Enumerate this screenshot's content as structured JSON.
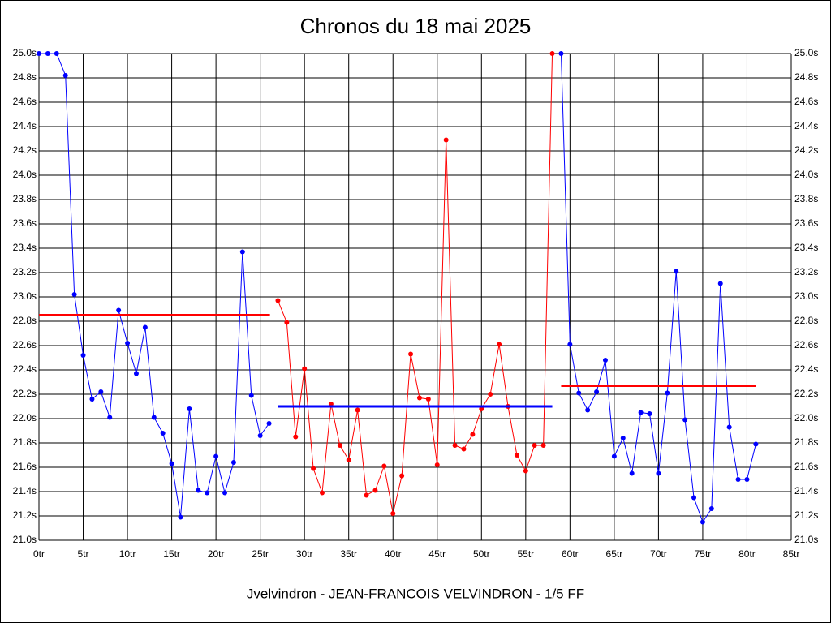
{
  "chart_data": {
    "type": "line",
    "title": "Chronos du 18 mai 2025",
    "footer": "Jvelvindron - JEAN-FRANCOIS VELVINDRON - 1/5 FF",
    "xlim": [
      0,
      85
    ],
    "xticks": [
      {
        "value": 0,
        "label": "0tr"
      },
      {
        "value": 5,
        "label": "5tr"
      },
      {
        "value": 10,
        "label": "10tr"
      },
      {
        "value": 15,
        "label": "15tr"
      },
      {
        "value": 20,
        "label": "20tr"
      },
      {
        "value": 25,
        "label": "25tr"
      },
      {
        "value": 30,
        "label": "30tr"
      },
      {
        "value": 35,
        "label": "35tr"
      },
      {
        "value": 40,
        "label": "40tr"
      },
      {
        "value": 45,
        "label": "45tr"
      },
      {
        "value": 50,
        "label": "50tr"
      },
      {
        "value": 55,
        "label": "55tr"
      },
      {
        "value": 60,
        "label": "60tr"
      },
      {
        "value": 65,
        "label": "65tr"
      },
      {
        "value": 70,
        "label": "70tr"
      },
      {
        "value": 75,
        "label": "75tr"
      },
      {
        "value": 80,
        "label": "80tr"
      },
      {
        "value": 85,
        "label": "85tr"
      }
    ],
    "ylim": [
      21.0,
      25.0
    ],
    "yticks": [
      {
        "value": 21.0,
        "label": "21.0s"
      },
      {
        "value": 21.2,
        "label": "21.2s"
      },
      {
        "value": 21.4,
        "label": "21.4s"
      },
      {
        "value": 21.6,
        "label": "21.6s"
      },
      {
        "value": 21.8,
        "label": "21.8s"
      },
      {
        "value": 22.0,
        "label": "22.0s"
      },
      {
        "value": 22.2,
        "label": "22.2s"
      },
      {
        "value": 22.4,
        "label": "22.4s"
      },
      {
        "value": 22.6,
        "label": "22.6s"
      },
      {
        "value": 22.8,
        "label": "22.8s"
      },
      {
        "value": 23.0,
        "label": "23.0s"
      },
      {
        "value": 23.2,
        "label": "23.2s"
      },
      {
        "value": 23.4,
        "label": "23.4s"
      },
      {
        "value": 23.6,
        "label": "23.6s"
      },
      {
        "value": 23.8,
        "label": "23.8s"
      },
      {
        "value": 24.0,
        "label": "24.0s"
      },
      {
        "value": 24.2,
        "label": "24.2s"
      },
      {
        "value": 24.4,
        "label": "24.4s"
      },
      {
        "value": 24.6,
        "label": "24.6s"
      },
      {
        "value": 24.8,
        "label": "24.8s"
      },
      {
        "value": 25.0,
        "label": "25.0s"
      }
    ],
    "grid": true,
    "series": [
      {
        "color": "#0000ff",
        "x": [
          0,
          1,
          2,
          3,
          4,
          5,
          6,
          7,
          8,
          9,
          10,
          11,
          12,
          13,
          14,
          15,
          16,
          17,
          18,
          19,
          20,
          21,
          22,
          23,
          24,
          25,
          26
        ],
        "values": [
          25.0,
          25.0,
          25.0,
          24.82,
          23.02,
          22.52,
          22.16,
          22.22,
          22.01,
          22.89,
          22.62,
          22.37,
          22.75,
          22.01,
          21.88,
          21.63,
          21.19,
          22.08,
          21.41,
          21.39,
          21.69,
          21.39,
          21.64,
          23.37,
          22.19,
          21.86,
          21.96
        ]
      },
      {
        "color": "#ff0000",
        "x": [
          27,
          28,
          29,
          30,
          31,
          32,
          33,
          34,
          35,
          36,
          37,
          38,
          39,
          40,
          41,
          42,
          43,
          44,
          45,
          46,
          47,
          48,
          49,
          50,
          51,
          52,
          53,
          54,
          55,
          56,
          57,
          58
        ],
        "values": [
          22.97,
          22.79,
          21.85,
          22.41,
          21.59,
          21.39,
          22.12,
          21.78,
          21.66,
          22.07,
          21.37,
          21.41,
          21.61,
          21.22,
          21.53,
          22.53,
          22.17,
          22.16,
          21.62,
          24.29,
          21.78,
          21.75,
          21.87,
          22.08,
          22.2,
          22.61,
          22.1,
          21.7,
          21.57,
          21.78,
          21.78,
          25.0
        ]
      },
      {
        "color": "#0000ff",
        "x": [
          59,
          60,
          61,
          62,
          63,
          64,
          65,
          66,
          67,
          68,
          69,
          70,
          71,
          72,
          73,
          74,
          75,
          76,
          77,
          78,
          79,
          80,
          81
        ],
        "values": [
          25.0,
          22.61,
          22.21,
          22.07,
          22.22,
          22.48,
          21.69,
          21.84,
          21.55,
          22.05,
          22.04,
          21.55,
          22.21,
          23.21,
          21.99,
          21.35,
          21.15,
          21.26,
          23.11,
          21.93,
          21.5,
          21.5,
          21.79
        ]
      }
    ],
    "averages": [
      {
        "color": "#ff0000",
        "x": [
          0,
          26.1
        ],
        "value": 22.85
      },
      {
        "color": "#0000ff",
        "x": [
          27,
          58
        ],
        "value": 22.1
      },
      {
        "color": "#ff0000",
        "x": [
          59,
          81
        ],
        "value": 22.27
      }
    ]
  }
}
